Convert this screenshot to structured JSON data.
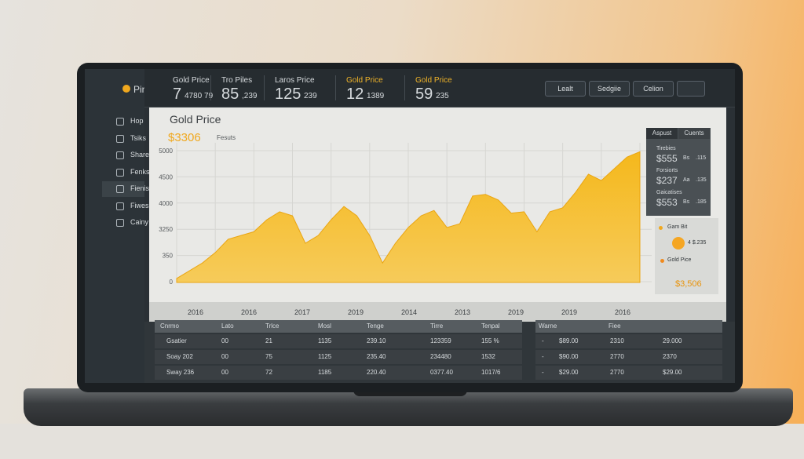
{
  "brand": "Pino",
  "nav": [
    "Hop",
    "Tsiks",
    "Share",
    "Fenks",
    "Fienis",
    "Fiwes",
    "Cainy"
  ],
  "stats": [
    {
      "label": "Gold Price",
      "value": "7",
      "sub": "4780 79"
    },
    {
      "label": "Tro Piles",
      "value": "85",
      "sub": ",239"
    },
    {
      "label": "Laros Price",
      "value": "125",
      "sub": "239"
    },
    {
      "label": "Gold Price",
      "value": "12",
      "sub": "1389"
    },
    {
      "label": "Gold Price",
      "value": "59",
      "sub": "235"
    }
  ],
  "toolbar": [
    "Lealt",
    "Sedgiie",
    "Celion"
  ],
  "chart": {
    "title": "Gold Price",
    "price": "$3306",
    "price_note": "Fesuts",
    "yticks": [
      "5000",
      "4500",
      "4000",
      "3250",
      "350",
      "0"
    ],
    "ylim": [
      0,
      5000
    ],
    "values": [
      150,
      440,
      730,
      1120,
      1620,
      1760,
      1900,
      2350,
      2650,
      2500,
      1470,
      1760,
      2350,
      2850,
      2500,
      1760,
      730,
      1470,
      2060,
      2500,
      2700,
      2060,
      2200,
      3240,
      3300,
      3090,
      2600,
      2650,
      1900,
      2650,
      2800,
      3380,
      4060,
      3820,
      4260,
      4700,
      4900
    ],
    "xlabels": [
      "2016",
      "2016",
      "2017",
      "2019",
      "2014",
      "2013",
      "2019",
      "2019",
      "2016"
    ]
  },
  "side_panel": {
    "tabs": [
      "Aspust",
      "Cuents"
    ],
    "items": [
      {
        "label": "Tirebies",
        "value": "$555",
        "note": "Bs",
        "change": ".115"
      },
      {
        "label": "Forsiorts",
        "value": "$237",
        "note": "Aa",
        "change": ".135"
      },
      {
        "label": "Gaicatises",
        "value": "$553",
        "note": "Bs",
        "change": ".185"
      }
    ],
    "legend": [
      "Gam Bit",
      "4 $.235",
      "Gold Pice"
    ],
    "total": "$3,506"
  },
  "table": {
    "headers": [
      "Cnrmo",
      "Lato",
      "Trlce",
      "Mosl",
      "Tenge",
      "Tirre",
      "Tenpal"
    ],
    "rows": [
      [
        "Gsatier",
        "00",
        "21",
        "1135",
        "239.10",
        "123359",
        "155 %"
      ],
      [
        "Soay 202",
        "00",
        "75",
        "1125",
        "235.40",
        "234480",
        "1532"
      ],
      [
        "Sway 236",
        "00",
        "72",
        "1185",
        "220.40",
        "0377.40",
        "1017/6"
      ]
    ]
  },
  "table2": {
    "headers": [
      "Warne",
      "Fiee"
    ],
    "rows": [
      [
        "-",
        "$89.00",
        "2310",
        "29.000"
      ],
      [
        "-",
        "$90.00",
        "2770",
        "2370"
      ],
      [
        "-",
        "$29.00",
        "2770",
        "$29.00"
      ]
    ]
  }
}
